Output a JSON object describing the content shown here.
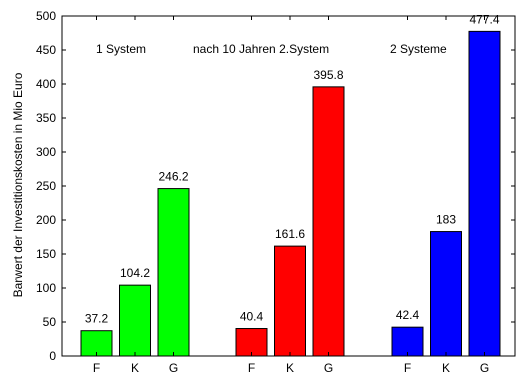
{
  "chart_data": {
    "type": "bar",
    "ylabel": "Barwert der Investitionskosten in Mio Euro",
    "ylim": [
      0,
      500
    ],
    "yticks": [
      0,
      50,
      100,
      150,
      200,
      250,
      300,
      350,
      400,
      450,
      500
    ],
    "grid": false,
    "groups": [
      {
        "annotation": "1 System",
        "color": "#00ff00",
        "categories": [
          "F",
          "K",
          "G"
        ],
        "values": [
          37.2,
          104.2,
          246.2
        ],
        "value_labels": [
          "37.2",
          "104.2",
          "246.2"
        ]
      },
      {
        "annotation": "nach 10 Jahren 2.System",
        "color": "#ff0000",
        "categories": [
          "F",
          "K",
          "G"
        ],
        "values": [
          40.4,
          161.6,
          395.8
        ],
        "value_labels": [
          "40.4",
          "161.6",
          "395.8"
        ]
      },
      {
        "annotation": "2 Systeme",
        "color": "#0000ff",
        "categories": [
          "F",
          "K",
          "G"
        ],
        "values": [
          42.4,
          183,
          477.4
        ],
        "value_labels": [
          "42.4",
          "183",
          "477.4"
        ]
      }
    ]
  }
}
